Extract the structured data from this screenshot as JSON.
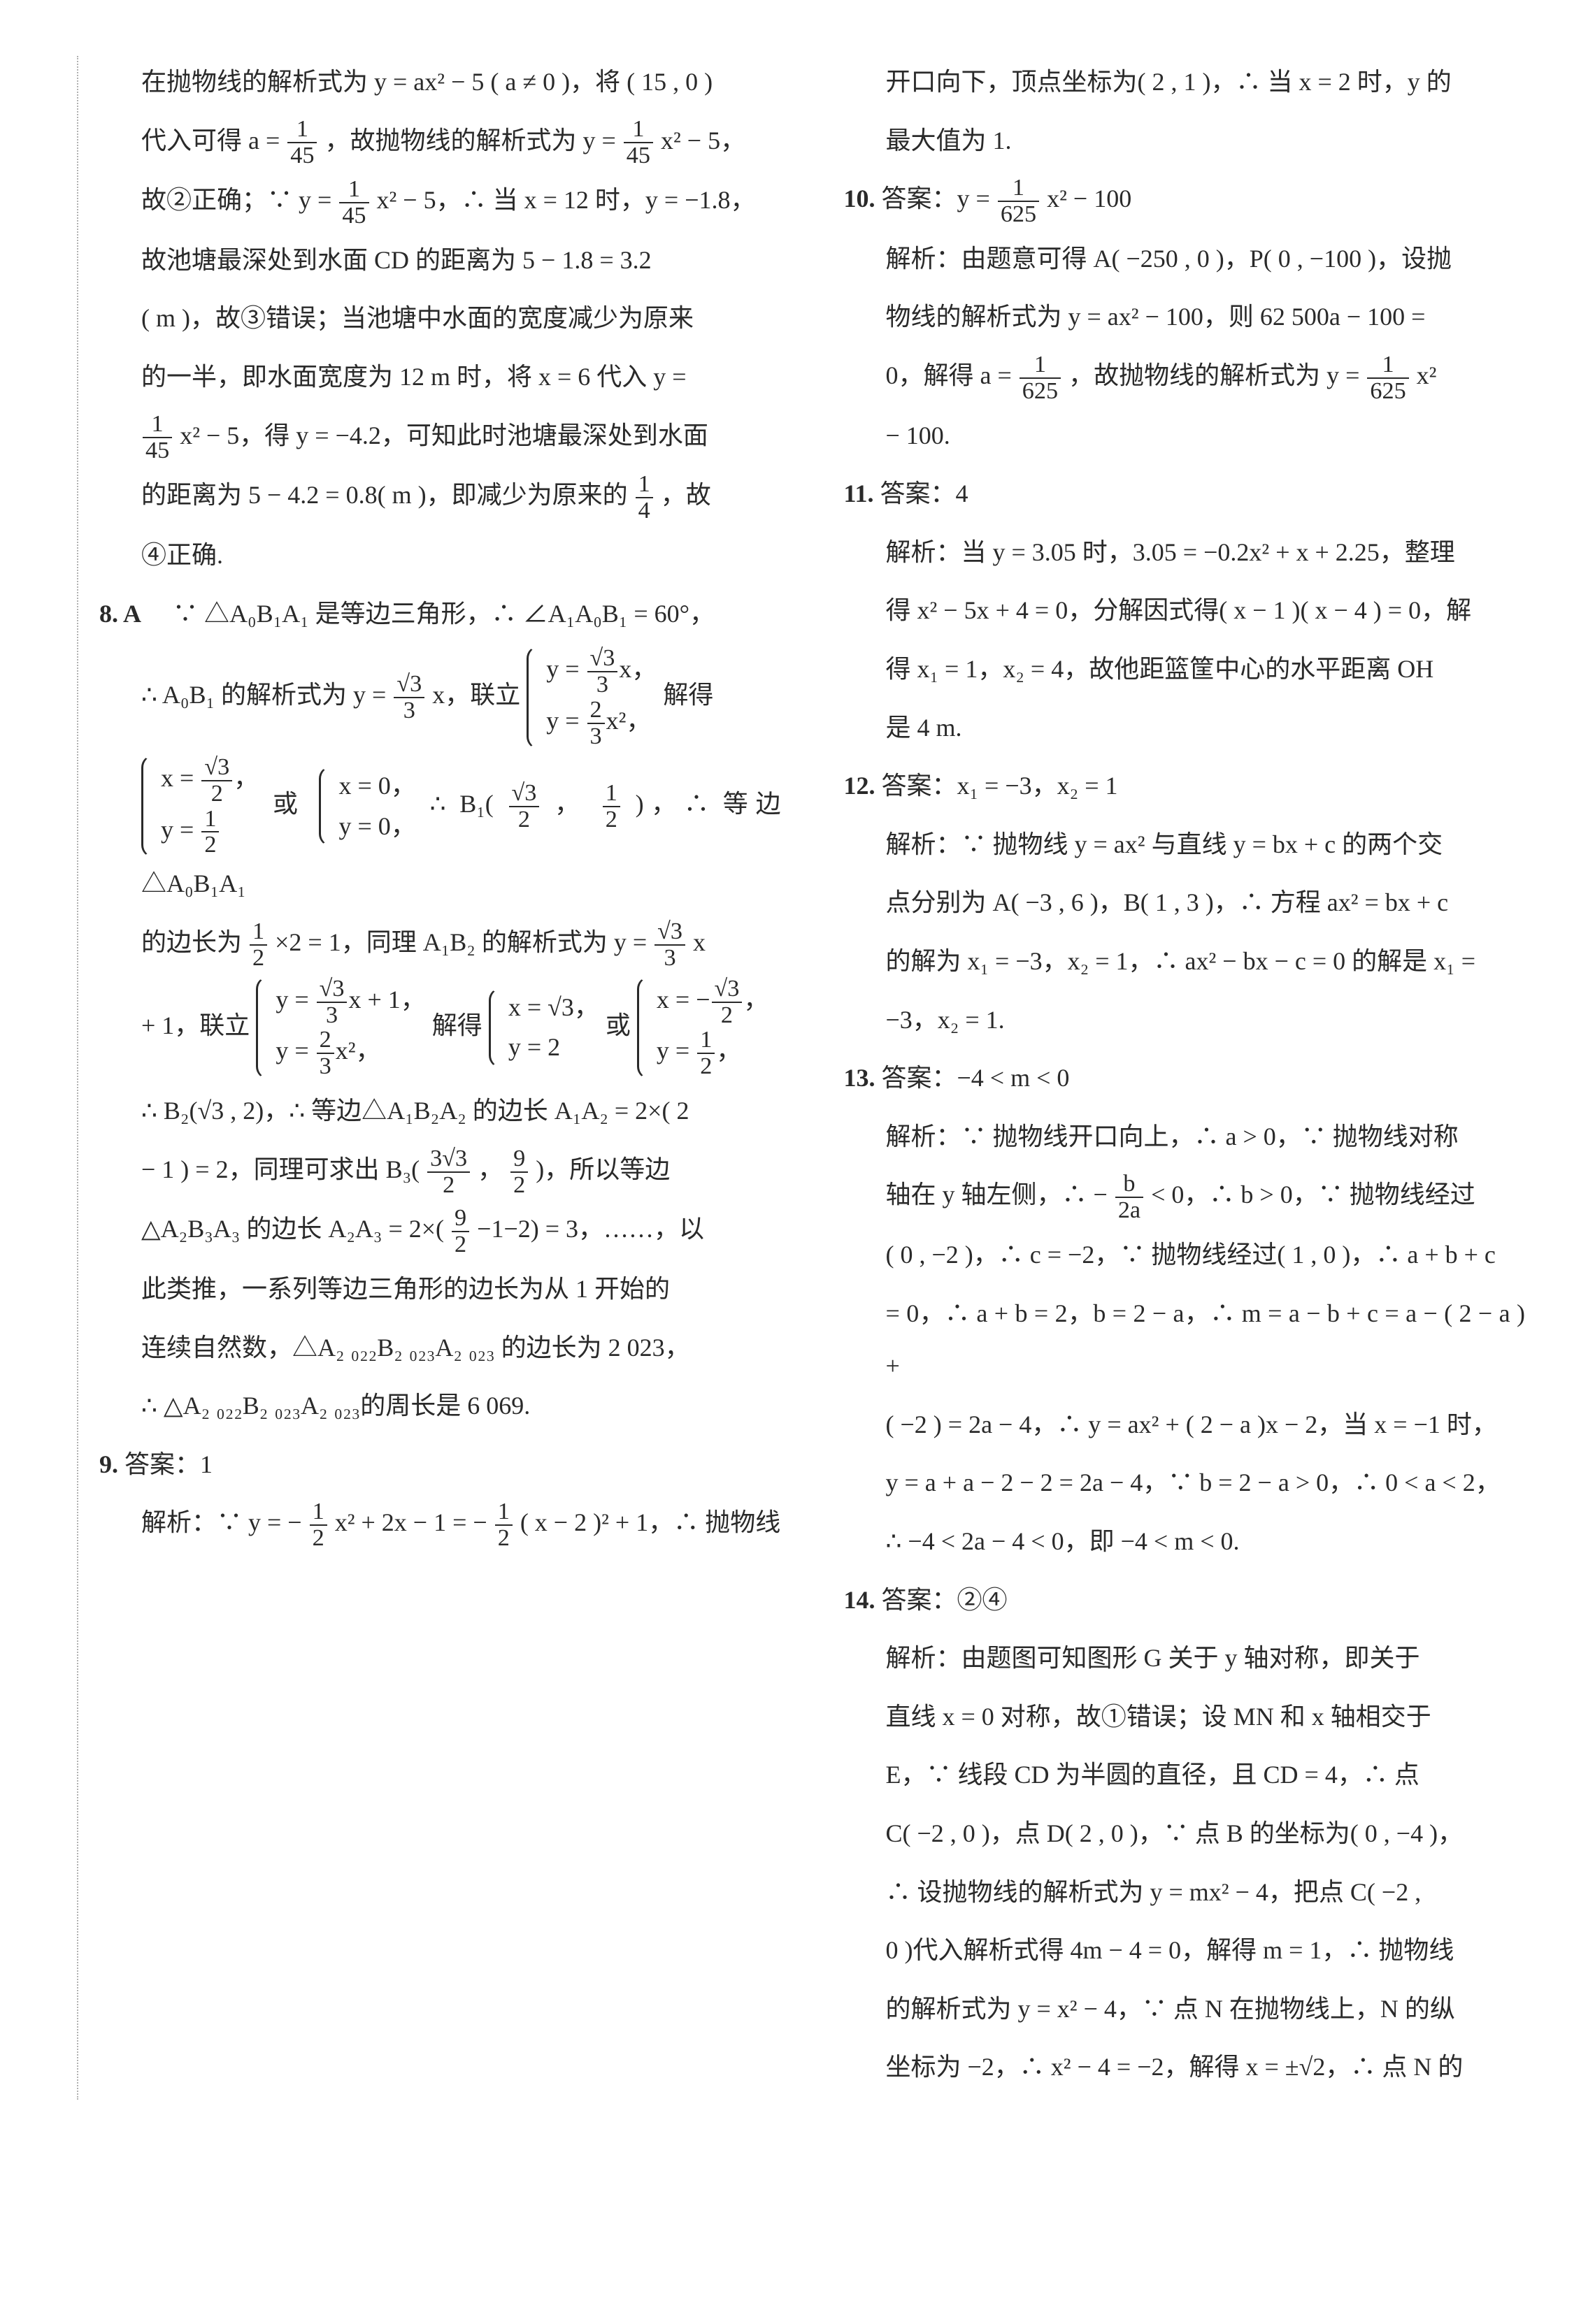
{
  "left": {
    "p1": "在抛物线的解析式为 y = ax² − 5 ( a ≠ 0 )，将 ( 15 , 0 )",
    "p2a": "代入可得 a = ",
    "p2frac": {
      "n": "1",
      "d": "45"
    },
    "p2b": "，故抛物线的解析式为 y = ",
    "p2frac2": {
      "n": "1",
      "d": "45"
    },
    "p2c": "x² − 5，",
    "p3a": "故②正确；∵ y = ",
    "p3frac": {
      "n": "1",
      "d": "45"
    },
    "p3b": "x² − 5，∴ 当 x = 12 时，y = −1.8，",
    "p4": "故池塘最深处到水面 CD 的距离为 5 − 1.8 = 3.2",
    "p5": "( m )，故③错误；当池塘中水面的宽度减少为原来",
    "p6": "的一半，即水面宽度为 12 m 时，将 x = 6 代入 y =",
    "p7frac": {
      "n": "1",
      "d": "45"
    },
    "p7b": "x² − 5，得 y = −4.2，可知此时池塘最深处到水面",
    "p8a": "的距离为 5 − 4.2 = 0.8( m )，即减少为原来的",
    "p8frac": {
      "n": "1",
      "d": "4"
    },
    "p8b": "，故",
    "p9": "④正确.",
    "q8num": "8. A",
    "q8a": "　∵ △A₀B₁A₁ 是等边三角形，∴ ∠A₁A₀B₁ = 60°，",
    "q8b1": "∴ A₀B₁ 的解析式为 y = ",
    "q8frac1": {
      "n": "√3",
      "d": "3"
    },
    "q8b2": "x，联立 ",
    "q8sys1r1a": "y = ",
    "q8sys1r1frac": {
      "n": "√3",
      "d": "3"
    },
    "q8sys1r1b": "x，",
    "q8sys1r2a": "y = ",
    "q8sys1r2frac": {
      "n": "2",
      "d": "3"
    },
    "q8sys1r2b": "x²，",
    "q8b3": "解得",
    "q8sys2r1a": "x = ",
    "q8sys2r1frac": {
      "n": "√3",
      "d": "2"
    },
    "q8sys2r1b": "，",
    "q8sys2r2a": "y = ",
    "q8sys2r2frac": {
      "n": "1",
      "d": "2"
    },
    "q8c1": "或",
    "q8sys3r1": "x = 0，",
    "q8sys3r2": "y = 0，",
    "q8c2": "∴ B₁(",
    "q8c2frac1": {
      "n": "√3",
      "d": "2"
    },
    "q8c2mid": "，",
    "q8c2frac2": {
      "n": "1",
      "d": "2"
    },
    "q8c3": ")，∴ 等边 △A₀B₁A₁",
    "q8d1": "的边长为",
    "q8dfrac": {
      "n": "1",
      "d": "2"
    },
    "q8d2": "×2 = 1，同理 A₁B₂ 的解析式为 y = ",
    "q8dfrac2": {
      "n": "√3",
      "d": "3"
    },
    "q8d3": "x",
    "q8e1": "+ 1，联立 ",
    "q8sys4r1a": "y = ",
    "q8sys4r1frac": {
      "n": "√3",
      "d": "3"
    },
    "q8sys4r1b": "x + 1，",
    "q8sys4r2a": "y = ",
    "q8sys4r2frac": {
      "n": "2",
      "d": "3"
    },
    "q8sys4r2b": "x²，",
    "q8e2": "解得 ",
    "q8sys5r1": "x = √3，",
    "q8sys5r2": "y = 2",
    "q8e3": "或",
    "q8sys6r1a": "x = −",
    "q8sys6r1frac": {
      "n": "√3",
      "d": "2"
    },
    "q8sys6r1b": "，",
    "q8sys6r2a": "y = ",
    "q8sys6r2frac": {
      "n": "1",
      "d": "2"
    },
    "q8sys6r2b": "，",
    "q8f": "∴ B₂(√3 , 2)，∴ 等边△A₁B₂A₂ 的边长 A₁A₂ = 2×( 2",
    "q8g1": "− 1 ) = 2，同理可求出 B₃(",
    "q8gfrac1": {
      "n": "3√3",
      "d": "2"
    },
    "q8gmid": "，",
    "q8gfrac2": {
      "n": "9",
      "d": "2"
    },
    "q8g2": ")，所以等边",
    "q8h1": "△A₂B₃A₃ 的边长 A₂A₃ = 2×(",
    "q8hfrac": {
      "n": "9",
      "d": "2"
    },
    "q8h2": "−1−2) = 3，……，以",
    "q8i": "此类推，一系列等边三角形的边长为从 1 开始的",
    "q8j": "连续自然数，△A₂ ₀₂₂B₂ ₀₂₃A₂ ₀₂₃ 的边长为 2 023，",
    "q8k": "∴ △A₂ ₀₂₂B₂ ₀₂₃A₂ ₀₂₃的周长是 6 069.",
    "q9num": "9. ",
    "q9ans": "答案：1",
    "q9a1": "解析：∵ y = −",
    "q9frac1": {
      "n": "1",
      "d": "2"
    },
    "q9a2": "x² + 2x − 1 = −",
    "q9frac2": {
      "n": "1",
      "d": "2"
    },
    "q9a3": "( x − 2 )² + 1，∴ 抛物线"
  },
  "right": {
    "p1": "开口向下，顶点坐标为( 2 , 1 )，∴ 当 x = 2 时，y 的",
    "p2": "最大值为 1.",
    "q10num": "10. ",
    "q10a1": "答案：y = ",
    "q10frac": {
      "n": "1",
      "d": "625"
    },
    "q10a2": "x² − 100",
    "q10b": "解析：由题意可得 A( −250 , 0 )，P( 0 , −100 )，设抛",
    "q10c": "物线的解析式为 y = ax² − 100，则 62 500a − 100 =",
    "q10d1": "0，解得 a = ",
    "q10dfrac": {
      "n": "1",
      "d": "625"
    },
    "q10d2": "，故抛物线的解析式为 y = ",
    "q10dfrac2": {
      "n": "1",
      "d": "625"
    },
    "q10d3": "x²",
    "q10e": "− 100.",
    "q11num": "11. ",
    "q11ans": "答案：4",
    "q11a": "解析：当 y = 3.05 时，3.05 = −0.2x² + x + 2.25，整理",
    "q11b": "得 x² − 5x + 4 = 0，分解因式得( x − 1 )( x − 4 ) = 0，解",
    "q11c": "得 x₁ = 1，x₂ = 4，故他距篮筐中心的水平距离 OH",
    "q11d": "是 4 m.",
    "q12num": "12. ",
    "q12ans": "答案：x₁ = −3，x₂ = 1",
    "q12a": "解析：∵ 抛物线 y = ax² 与直线 y = bx + c 的两个交",
    "q12b": "点分别为 A( −3 , 6 )，B( 1 , 3 )，∴ 方程 ax² = bx + c",
    "q12c": "的解为 x₁ = −3，x₂ = 1，∴ ax² − bx − c = 0 的解是 x₁ =",
    "q12d": "−3，x₂ = 1.",
    "q13num": "13. ",
    "q13ans": "答案：−4 < m < 0",
    "q13a": "解析：∵ 抛物线开口向上，∴ a > 0，∵ 抛物线对称",
    "q13b1": "轴在 y 轴左侧，∴ −",
    "q13bfrac": {
      "n": "b",
      "d": "2a"
    },
    "q13b2": " < 0，∴ b > 0，∵ 抛物线经过",
    "q13c": "( 0 , −2 )，∴ c = −2，∵ 抛物线经过( 1 , 0 )，∴ a + b + c",
    "q13d": "= 0，∴ a + b = 2，b = 2 − a，∴ m = a − b + c = a − ( 2 − a ) +",
    "q13e": "( −2 ) = 2a − 4，∴ y = ax² + ( 2 − a )x − 2，当 x = −1 时，",
    "q13f": "y = a + a − 2 − 2 = 2a − 4，∵ b = 2 − a > 0，∴ 0 < a < 2，",
    "q13g": "∴ −4 < 2a − 4 < 0，即 −4 < m < 0.",
    "q14num": "14. ",
    "q14ans": "答案：②④",
    "q14a": "解析：由题图可知图形 G 关于 y 轴对称，即关于",
    "q14b": "直线 x = 0 对称，故①错误；设 MN 和 x 轴相交于",
    "q14c": "E，∵ 线段 CD 为半圆的直径，且 CD = 4，∴ 点",
    "q14d": "C( −2 , 0 )，点 D( 2 , 0 )，∵ 点 B 的坐标为( 0 , −4 )，",
    "q14e": "∴ 设抛物线的解析式为 y = mx² − 4，把点 C( −2 ,",
    "q14f": "0 )代入解析式得 4m − 4 = 0，解得 m = 1，∴ 抛物线",
    "q14g": "的解析式为 y = x² − 4，∵ 点 N 在抛物线上，N 的纵",
    "q14h": "坐标为 −2，∴ x² − 4 = −2，解得 x = ±√2，∴ 点 N 的"
  }
}
